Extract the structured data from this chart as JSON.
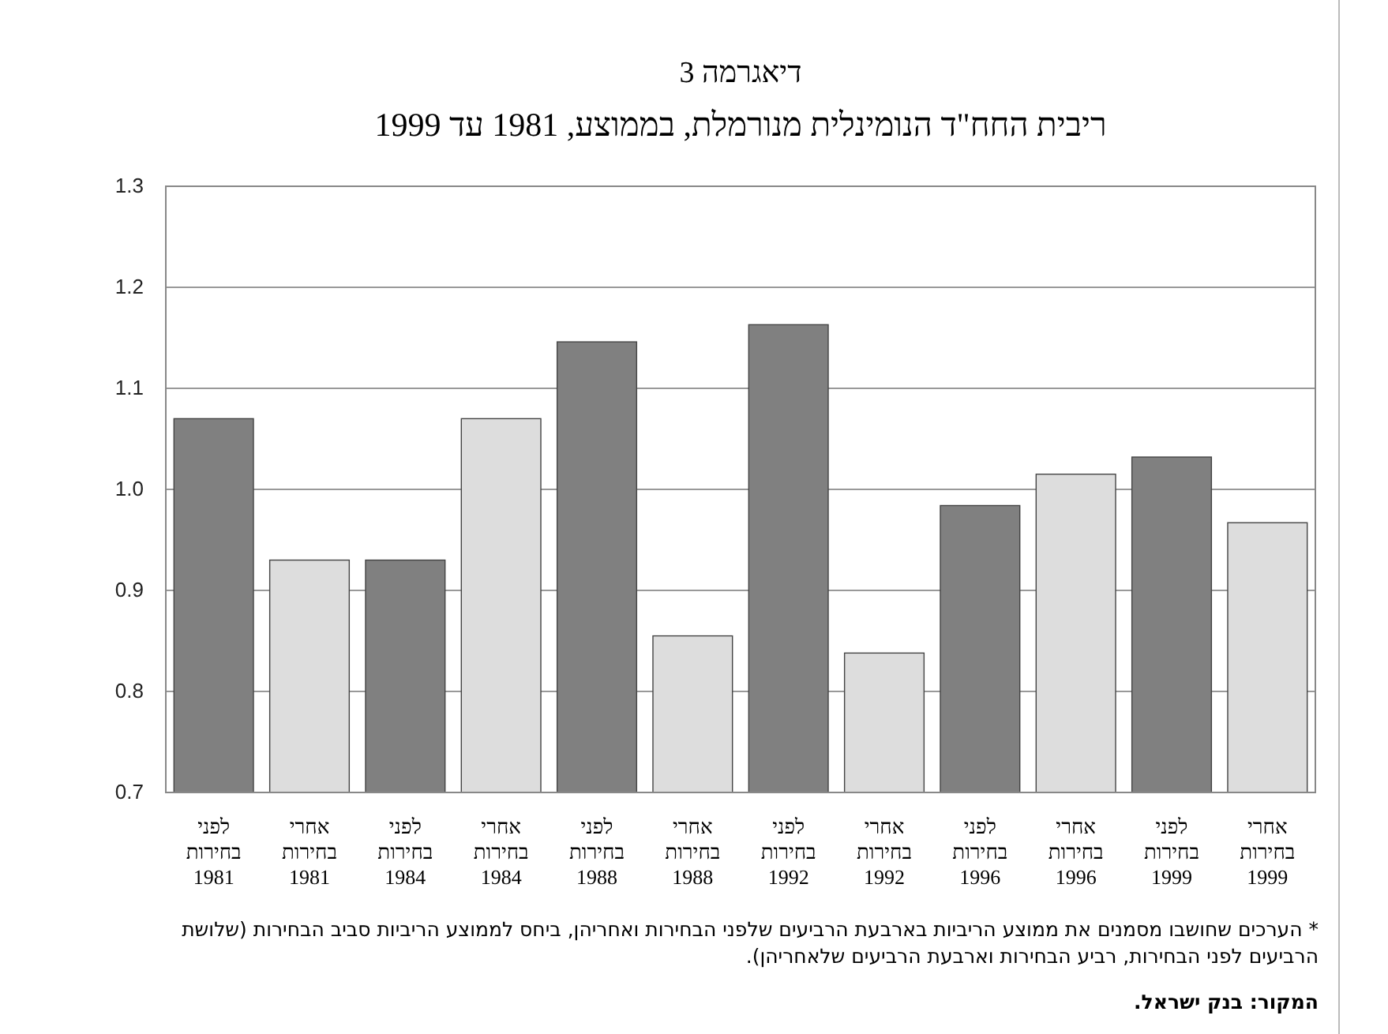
{
  "chart_data": {
    "type": "bar",
    "title": "דיאגרמה 3",
    "subtitle": "ריבית החח\"ד הנומינלית מנורמלת, בממוצע, 1981 עד 1999",
    "categories": [
      "לפני\nבחירות\n1981",
      "אחרי\nבחירות\n1981",
      "לפני\nבחירות\n1984",
      "אחרי\nבחירות\n1984",
      "לפני\nבחירות\n1988",
      "אחרי\nבחירות\n1988",
      "לפני\nבחירות\n1992",
      "אחרי\nבחירות\n1992",
      "לפני\nבחירות\n1996",
      "אחרי\nבחירות\n1996",
      "לפני\nבחירות\n1999",
      "אחרי\nבחירות\n1999"
    ],
    "values": [
      1.07,
      0.93,
      0.93,
      1.07,
      1.146,
      0.855,
      1.163,
      0.838,
      0.984,
      1.015,
      1.032,
      0.967
    ],
    "colors": [
      "#808080",
      "#dddddd",
      "#808080",
      "#dddddd",
      "#808080",
      "#dddddd",
      "#808080",
      "#dddddd",
      "#808080",
      "#dddddd",
      "#808080",
      "#dddddd"
    ],
    "ylim": [
      0.7,
      1.3
    ],
    "yticks": [
      {
        "value": 0.7,
        "label": "0.7"
      },
      {
        "value": 0.8,
        "label": "0.8"
      },
      {
        "value": 0.9,
        "label": "0.9"
      },
      {
        "value": 1,
        "label": "1.0"
      },
      {
        "value": 1.1,
        "label": "1.1"
      },
      {
        "value": 1.2,
        "label": "1.2"
      },
      {
        "value": 1.3,
        "label": "1.3"
      }
    ],
    "grid": "y",
    "annotations": [
      "* הערכים שחושבו מסמנים את ממוצע הריביות בארבעת הרביעים שלפני הבחירות ואחריהן, ביחס לממוצע הריביות סביב הבחירות (שלושת הרביעים לפני הבחירות, רביע הבחירות וארבעת הרביעים שלאחריהן).",
      "המקור: בנק ישראל."
    ]
  }
}
